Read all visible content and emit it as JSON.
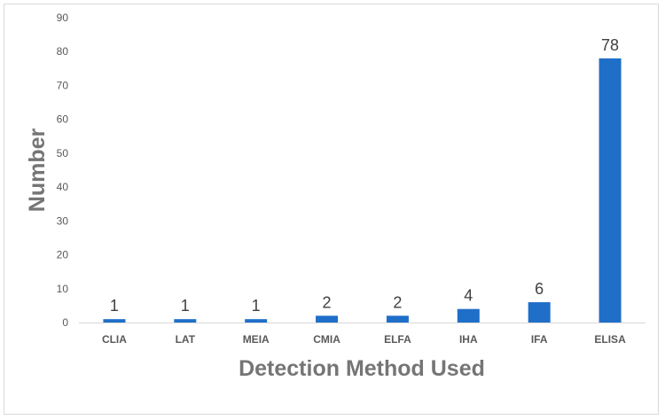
{
  "chart_data": {
    "type": "bar",
    "title": "",
    "xlabel": "Detection Method Used",
    "ylabel": "Number",
    "categories": [
      "CLIA",
      "LAT",
      "MEIA",
      "CMIA",
      "ELFA",
      "IHA",
      "IFA",
      "ELISA"
    ],
    "values": [
      1,
      1,
      1,
      2,
      2,
      4,
      6,
      78
    ],
    "ylim": [
      0,
      90
    ],
    "yticks": [
      0,
      10,
      20,
      30,
      40,
      50,
      60,
      70,
      80,
      90
    ],
    "grid": false,
    "legend": "none",
    "data_labels": true,
    "colors": {
      "bar": "#1f6fc9",
      "axis": "#d9d9d9",
      "text": "#595959"
    }
  }
}
